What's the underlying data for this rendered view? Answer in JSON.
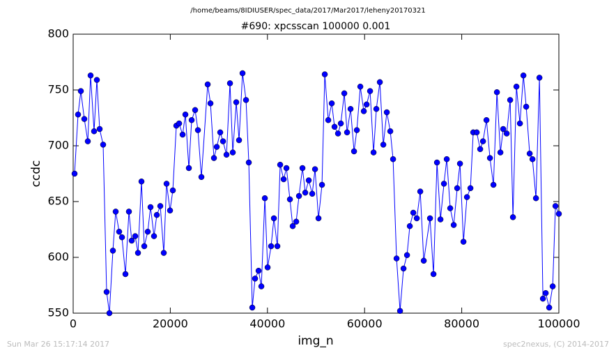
{
  "chart_data": {
    "type": "line",
    "title": "/home/beams/8IDIUSER/spec_data/2017/Mar2017/leheny20170321",
    "subtitle": "#690: xpcsscan 100000 0.001",
    "x_label": "img_n",
    "y_label": "ccdc",
    "xlim": [
      0,
      100000
    ],
    "ylim": [
      550,
      800
    ],
    "xticks": [
      0,
      20000,
      40000,
      60000,
      80000,
      100000
    ],
    "yticks": [
      550,
      600,
      650,
      700,
      750,
      800
    ],
    "grid": false,
    "x": [
      287,
      1005,
      1579,
      2296,
      3014,
      3588,
      4305,
      4879,
      5453,
      6171,
      6888,
      7462,
      8180,
      8754,
      9471,
      10045,
      10763,
      11480,
      12054,
      12772,
      13346,
      14063,
      14637,
      15355,
      15929,
      16646,
      17220,
      17938,
      18655,
      19229,
      19947,
      20521,
      21238,
      21812,
      22530,
      23104,
      23821,
      24395,
      25113,
      25687,
      26404,
      27696,
      28270,
      28987,
      29561,
      30279,
      30853,
      31570,
      32288,
      32862,
      33579,
      34153,
      34871,
      35588,
      36162,
      36880,
      37454,
      38171,
      38745,
      39463,
      40037,
      40754,
      41328,
      42046,
      42620,
      43337,
      43911,
      44629,
      45203,
      45920,
      46494,
      47212,
      47786,
      48503,
      49221,
      49795,
      50512,
      51230,
      51804,
      52521,
      53239,
      53813,
      54530,
      55104,
      55822,
      56396,
      57113,
      57831,
      58405,
      59122,
      59840,
      60414,
      61131,
      61849,
      62423,
      63140,
      63858,
      64575,
      65293,
      65867,
      66584,
      67302,
      68019,
      68737,
      69311,
      70028,
      70746,
      71463,
      72181,
      73472,
      74190,
      74907,
      75625,
      76342,
      76916,
      77634,
      78351,
      79069,
      79643,
      80360,
      81078,
      81795,
      82369,
      83087,
      83804,
      84378,
      85096,
      85813,
      86531,
      87248,
      87966,
      88540,
      89257,
      89975,
      90549,
      91266,
      91984,
      92701,
      93275,
      93993,
      94567,
      95284,
      96002,
      96719,
      97293,
      98011,
      98728,
      99302,
      100000
    ],
    "series": [
      {
        "name": "ccdc",
        "color": "#0000ff",
        "values": [
          675,
          728,
          749,
          724,
          704,
          763,
          713,
          759,
          715,
          701,
          569,
          550,
          606,
          641,
          623,
          618,
          585,
          641,
          615,
          619,
          604,
          668,
          610,
          623,
          645,
          619,
          638,
          646,
          604,
          666,
          642,
          660,
          718,
          720,
          710,
          728,
          680,
          723,
          732,
          714,
          672,
          755,
          738,
          689,
          699,
          712,
          704,
          692,
          756,
          694,
          739,
          705,
          765,
          741,
          685,
          555,
          581,
          588,
          574,
          653,
          591,
          610,
          635,
          610,
          683,
          670,
          680,
          652,
          628,
          632,
          655,
          680,
          658,
          669,
          657,
          679,
          635,
          665,
          764,
          723,
          738,
          717,
          711,
          720,
          747,
          712,
          733,
          695,
          714,
          753,
          731,
          737,
          749,
          694,
          733,
          757,
          701,
          730,
          713,
          688,
          599,
          552,
          590,
          602,
          628,
          640,
          635,
          659,
          597,
          635,
          585,
          685,
          634,
          666,
          688,
          644,
          629,
          662,
          684,
          614,
          654,
          662,
          712,
          712,
          697,
          704,
          723,
          689,
          665,
          748,
          694,
          715,
          711,
          741,
          636,
          753,
          720,
          763,
          735,
          693,
          688,
          653,
          761,
          563,
          568,
          555,
          574,
          646,
          639
        ]
      }
    ]
  },
  "footer": {
    "left": "Sun Mar 26 15:17:14 2017",
    "right": "spec2nexus, (C) 2014-2017"
  }
}
